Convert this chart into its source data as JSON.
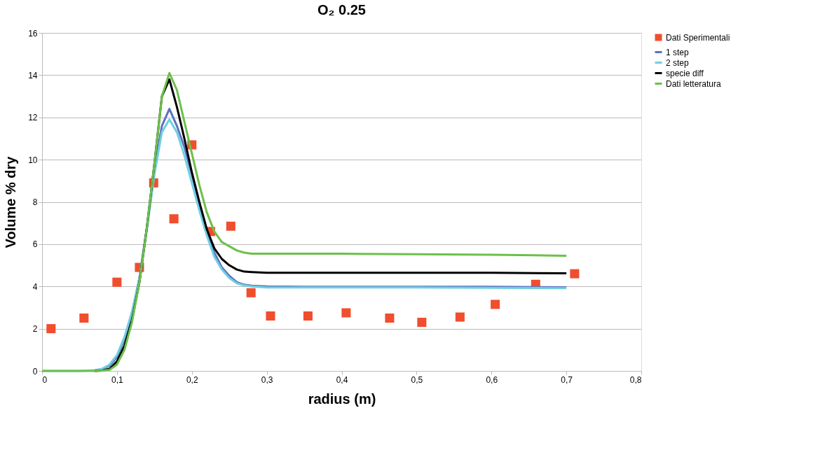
{
  "chart_data": {
    "type": "line",
    "title": "O₂ 0.25",
    "xlabel": "radius (m)",
    "ylabel": "Volume % dry",
    "xlim": [
      0,
      0.8
    ],
    "xticks": [
      0,
      {
        "value": 0.1,
        "label": "0,1"
      },
      {
        "value": 0.2,
        "label": "0,2"
      },
      {
        "value": 0.3,
        "label": "0,3"
      },
      {
        "value": 0.4,
        "label": "0,4"
      },
      {
        "value": 0.5,
        "label": "0,5"
      },
      {
        "value": 0.6,
        "label": "0,6"
      },
      {
        "value": 0.7,
        "label": "0,7"
      },
      {
        "value": 0.8,
        "label": "0,8"
      }
    ],
    "ylim": [
      0,
      16
    ],
    "yticks": [
      0,
      2,
      4,
      6,
      8,
      10,
      12,
      14,
      16
    ],
    "grid": "y",
    "legend": "right",
    "line_style": "solid",
    "x": [
      0,
      0.05,
      0.07,
      0.08,
      0.09,
      0.1,
      0.11,
      0.12,
      0.13,
      0.14,
      0.15,
      0.16,
      0.17,
      0.18,
      0.19,
      0.2,
      0.21,
      0.22,
      0.23,
      0.24,
      0.25,
      0.26,
      0.27,
      0.28,
      0.3,
      0.35,
      0.4,
      0.5,
      0.6,
      0.7
    ],
    "series": [
      {
        "name": "Dati Sperimentali",
        "type": "scatter",
        "marker": "square",
        "color": "#f04e2e",
        "x": [
          0.012,
          0.056,
          0.1,
          0.13,
          0.149,
          0.176,
          0.2,
          0.225,
          0.252,
          0.279,
          0.305,
          0.355,
          0.406,
          0.464,
          0.507,
          0.558,
          0.605,
          0.659,
          0.711
        ],
        "values": [
          2.0,
          2.5,
          4.2,
          4.9,
          8.9,
          7.2,
          10.7,
          6.6,
          6.85,
          3.7,
          2.6,
          2.6,
          2.75,
          2.5,
          2.3,
          2.55,
          3.15,
          4.1,
          4.6
        ]
      },
      {
        "name": "1 step",
        "color": "#5b72c0",
        "values": [
          null,
          null,
          0.02,
          0.08,
          0.25,
          0.65,
          1.5,
          2.7,
          4.4,
          6.8,
          9.5,
          11.6,
          12.4,
          11.6,
          10.6,
          9.3,
          7.9,
          6.6,
          5.6,
          4.9,
          4.5,
          4.2,
          4.08,
          4.03,
          4.0,
          3.98,
          3.98,
          3.98,
          3.98,
          3.96
        ]
      },
      {
        "name": "2 step",
        "color": "#6fcfe0",
        "values": [
          0,
          0,
          0.03,
          0.1,
          0.3,
          0.75,
          1.6,
          2.8,
          4.4,
          6.7,
          9.3,
          11.3,
          11.9,
          11.3,
          10.2,
          8.9,
          7.6,
          6.4,
          5.4,
          4.8,
          4.4,
          4.15,
          4.05,
          4.0,
          3.95,
          3.95,
          3.95,
          3.95,
          3.93,
          3.92
        ]
      },
      {
        "name": "specie diff",
        "color": "#000000",
        "values": [
          null,
          null,
          0,
          0.02,
          0.1,
          0.45,
          1.2,
          2.4,
          4.2,
          6.8,
          9.8,
          13.0,
          13.8,
          12.5,
          11.0,
          9.4,
          8.0,
          6.7,
          5.8,
          5.3,
          5.0,
          4.8,
          4.7,
          4.68,
          4.65,
          4.65,
          4.65,
          4.65,
          4.65,
          4.62
        ]
      },
      {
        "name": "Dati letteratura",
        "color": "#6cc04a",
        "values": [
          0,
          0,
          0,
          0.02,
          0.05,
          0.3,
          1.0,
          2.3,
          4.2,
          6.8,
          9.8,
          13.0,
          14.1,
          13.3,
          11.8,
          10.3,
          8.8,
          7.5,
          6.6,
          6.1,
          5.9,
          5.7,
          5.6,
          5.55,
          5.55,
          5.55,
          5.55,
          5.52,
          5.5,
          5.45
        ]
      }
    ]
  }
}
